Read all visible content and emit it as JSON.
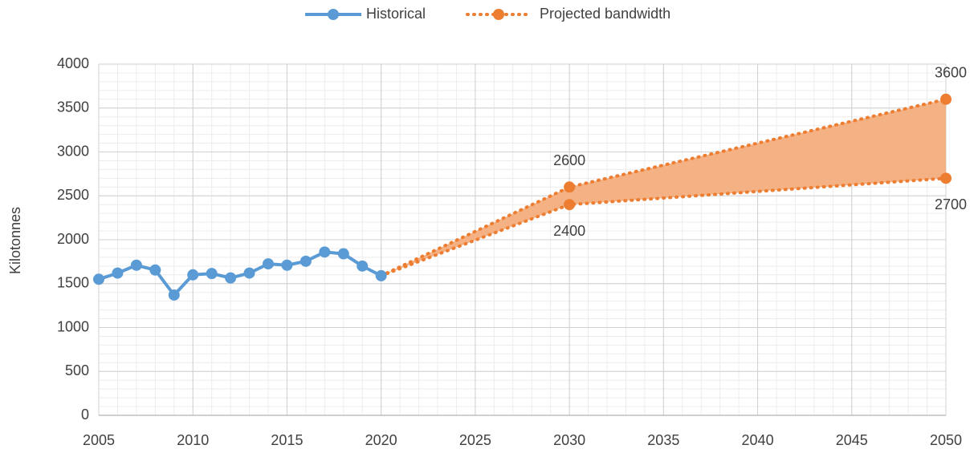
{
  "chart_data": {
    "type": "line",
    "y_label": "Kilotonnes",
    "xlim": [
      2005,
      2050
    ],
    "ylim": [
      0,
      4000
    ],
    "xticks": [
      2005,
      2010,
      2015,
      2020,
      2025,
      2030,
      2035,
      2040,
      2045,
      2050
    ],
    "yticks": [
      0,
      500,
      1000,
      1500,
      2000,
      2500,
      3000,
      3500,
      4000
    ],
    "grid": true,
    "minor_grid": {
      "x": 1,
      "y": 100
    },
    "legend": "top",
    "series": [
      {
        "name": "Historical",
        "color": "#5b9bd5",
        "x": [
          2005,
          2006,
          2007,
          2008,
          2009,
          2010,
          2011,
          2012,
          2013,
          2014,
          2015,
          2016,
          2017,
          2018,
          2019,
          2020
        ],
        "values": [
          1550,
          1620,
          1710,
          1655,
          1370,
          1600,
          1615,
          1565,
          1620,
          1725,
          1710,
          1755,
          1860,
          1840,
          1700,
          1590
        ]
      },
      {
        "name": "Projected bandwidth",
        "color": "#ed7d31",
        "fill": "#f4b183",
        "x": [
          2020,
          2030,
          2050
        ],
        "upper": [
          1590,
          2600,
          3600
        ],
        "lower": [
          1590,
          2400,
          2700
        ]
      }
    ]
  }
}
